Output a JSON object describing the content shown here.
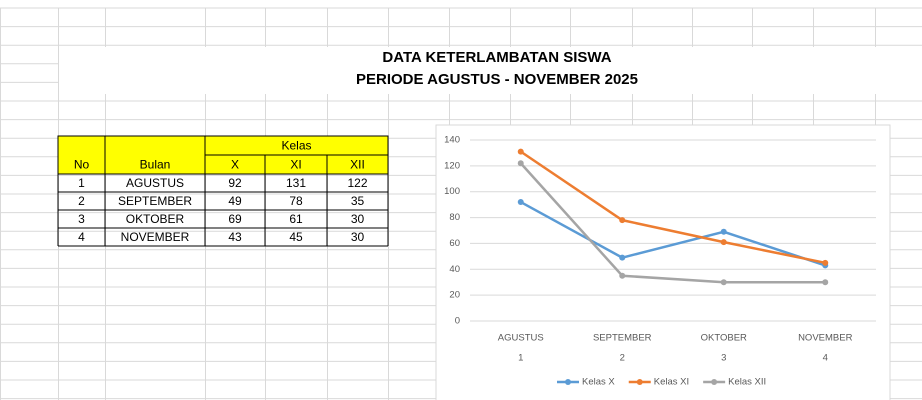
{
  "header": {
    "title": "DATA KETERLAMBATAN SISWA",
    "subtitle": "PERIODE AGUSTUS - NOVEMBER 2025"
  },
  "table": {
    "group_header": "Kelas",
    "columns": [
      "No",
      "Bulan",
      "X",
      "XI",
      "XII"
    ],
    "rows": [
      [
        1,
        "AGUSTUS",
        92,
        131,
        122
      ],
      [
        2,
        "SEPTEMBER",
        49,
        78,
        35
      ],
      [
        3,
        "OKTOBER",
        69,
        61,
        30
      ],
      [
        4,
        "NOVEMBER",
        43,
        45,
        30
      ]
    ]
  },
  "chart_data": {
    "type": "line",
    "categories": [
      "AGUSTUS",
      "SEPTEMBER",
      "OKTOBER",
      "NOVEMBER"
    ],
    "category_numbers": [
      1,
      2,
      3,
      4
    ],
    "series": [
      {
        "name": "Kelas X",
        "color": "#5b9bd5",
        "values": [
          92,
          49,
          69,
          43
        ]
      },
      {
        "name": "Kelas XI",
        "color": "#ed7d31",
        "values": [
          131,
          78,
          61,
          45
        ]
      },
      {
        "name": "Kelas XII",
        "color": "#a5a5a5",
        "values": [
          122,
          35,
          30,
          30
        ]
      }
    ],
    "ylim": [
      0,
      140
    ],
    "yticks": [
      0,
      20,
      40,
      60,
      80,
      100,
      120,
      140
    ],
    "grid": true,
    "legend": "bottom"
  }
}
